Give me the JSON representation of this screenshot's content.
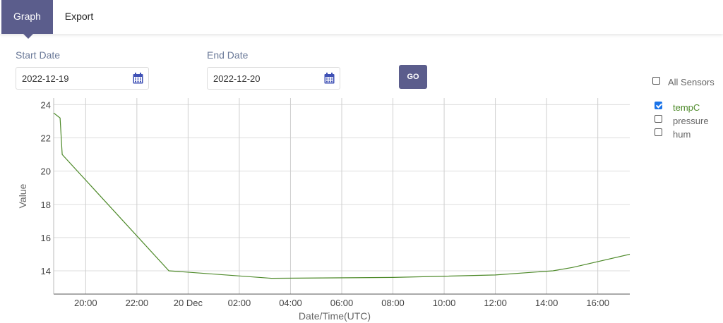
{
  "tabs": {
    "graph": "Graph",
    "export": "Export"
  },
  "filters": {
    "start_label": "Start Date",
    "start_value": "2022-12-19",
    "end_label": "End Date",
    "end_value": "2022-12-20",
    "go_label": "GO"
  },
  "sensors": {
    "all_label": "All Sensors",
    "all_checked": false,
    "items": [
      {
        "label": "tempC",
        "checked": true,
        "color": "#4e8a2a"
      },
      {
        "label": "pressure",
        "checked": false,
        "color": "#666666"
      },
      {
        "label": "hum",
        "checked": false,
        "color": "#666666"
      }
    ]
  },
  "chart_data": {
    "type": "line",
    "title": "",
    "xlabel": "Date/Time(UTC)",
    "ylabel": "Value",
    "x_range": [
      "2022-12-19T18:45",
      "2022-12-20T17:15"
    ],
    "ylim": [
      12.6,
      24.4
    ],
    "y_ticks": [
      14,
      16,
      18,
      20,
      22,
      24
    ],
    "x_ticks": [
      {
        "t": "2022-12-19T20:00",
        "label": "20:00"
      },
      {
        "t": "2022-12-19T22:00",
        "label": "22:00"
      },
      {
        "t": "2022-12-20T00:00",
        "label": "20 Dec"
      },
      {
        "t": "2022-12-20T02:00",
        "label": "02:00"
      },
      {
        "t": "2022-12-20T04:00",
        "label": "04:00"
      },
      {
        "t": "2022-12-20T06:00",
        "label": "06:00"
      },
      {
        "t": "2022-12-20T08:00",
        "label": "08:00"
      },
      {
        "t": "2022-12-20T10:00",
        "label": "10:00"
      },
      {
        "t": "2022-12-20T12:00",
        "label": "12:00"
      },
      {
        "t": "2022-12-20T14:00",
        "label": "14:00"
      },
      {
        "t": "2022-12-20T16:00",
        "label": "16:00"
      }
    ],
    "grid": true,
    "series": [
      {
        "name": "tempC",
        "color": "#4e8a2a",
        "points": [
          {
            "t": "2022-12-19T18:45",
            "y": 23.5
          },
          {
            "t": "2022-12-19T18:55",
            "y": 23.3
          },
          {
            "t": "2022-12-19T19:00",
            "y": 23.2
          },
          {
            "t": "2022-12-19T19:05",
            "y": 21.0
          },
          {
            "t": "2022-12-19T23:15",
            "y": 14.0
          },
          {
            "t": "2022-12-20T03:15",
            "y": 13.55
          },
          {
            "t": "2022-12-20T08:00",
            "y": 13.6
          },
          {
            "t": "2022-12-20T12:00",
            "y": 13.75
          },
          {
            "t": "2022-12-20T14:15",
            "y": 14.0
          },
          {
            "t": "2022-12-20T15:00",
            "y": 14.2
          },
          {
            "t": "2022-12-20T17:15",
            "y": 15.0
          }
        ]
      }
    ]
  }
}
